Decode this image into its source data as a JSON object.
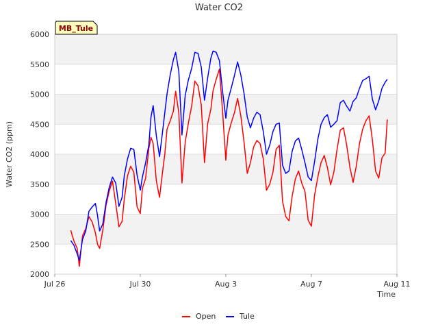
{
  "chart_data": {
    "type": "line",
    "title": "Water CO2",
    "xlabel": "Time",
    "ylabel": "Water CO2 (ppm)",
    "ylim": [
      2000,
      6000
    ],
    "yticks": [
      2000,
      2500,
      3000,
      3500,
      4000,
      4500,
      5000,
      5500,
      6000
    ],
    "xlim": [
      0,
      16
    ],
    "x_unit": "days since Jul 26",
    "xticks": [
      {
        "value": 0,
        "label": "Jul 26"
      },
      {
        "value": 4,
        "label": "Jul 30"
      },
      {
        "value": 8,
        "label": "Aug 3"
      },
      {
        "value": 12,
        "label": "Aug 7"
      },
      {
        "value": 16,
        "label": "Aug 11"
      }
    ],
    "badge": "MB_Tule",
    "legend_position": "bottom-center",
    "series": [
      {
        "name": "Open",
        "color": "#ff0000",
        "x": [
          0.75,
          0.9,
          1.05,
          1.15,
          1.3,
          1.45,
          1.6,
          1.75,
          1.9,
          2.0,
          2.1,
          2.25,
          2.4,
          2.55,
          2.7,
          2.85,
          3.0,
          3.15,
          3.25,
          3.4,
          3.55,
          3.7,
          3.85,
          4.0,
          4.1,
          4.25,
          4.4,
          4.5,
          4.6,
          4.75,
          4.9,
          5.05,
          5.15,
          5.25,
          5.4,
          5.55,
          5.65,
          5.8,
          5.95,
          6.1,
          6.25,
          6.4,
          6.55,
          6.7,
          6.85,
          7.0,
          7.15,
          7.3,
          7.4,
          7.55,
          7.7,
          7.85,
          8.0,
          8.1,
          8.25,
          8.4,
          8.55,
          8.7,
          8.85,
          9.0,
          9.15,
          9.3,
          9.45,
          9.6,
          9.75,
          9.9,
          10.05,
          10.2,
          10.35,
          10.5,
          10.65,
          10.8,
          10.95,
          11.1,
          11.25,
          11.4,
          11.55,
          11.7,
          11.85,
          12.0,
          12.15,
          12.3,
          12.45,
          12.6,
          12.75,
          12.9,
          13.05,
          13.2,
          13.35,
          13.5,
          13.65,
          13.8,
          13.95,
          14.1,
          14.25,
          14.4,
          14.55,
          14.7,
          14.85,
          15.0,
          15.15,
          15.3,
          15.45,
          15.55
        ],
        "values": [
          2730,
          2550,
          2430,
          2130,
          2640,
          2760,
          2960,
          2870,
          2690,
          2500,
          2430,
          2740,
          3150,
          3390,
          3550,
          3180,
          2790,
          2880,
          3250,
          3640,
          3800,
          3700,
          3120,
          3010,
          3430,
          3600,
          4100,
          4280,
          4180,
          3560,
          3280,
          3730,
          4010,
          4420,
          4560,
          4720,
          5050,
          4690,
          3520,
          4200,
          4520,
          4800,
          5220,
          5140,
          4820,
          3860,
          4510,
          4750,
          5060,
          5250,
          5420,
          4700,
          3900,
          4320,
          4520,
          4690,
          4930,
          4640,
          4200,
          3680,
          3860,
          4120,
          4230,
          4180,
          3920,
          3400,
          3500,
          3700,
          4080,
          4150,
          3220,
          2960,
          2890,
          3300,
          3590,
          3720,
          3520,
          3380,
          2900,
          2800,
          3320,
          3620,
          3860,
          3980,
          3780,
          3490,
          3700,
          4080,
          4400,
          4440,
          4150,
          3780,
          3530,
          3800,
          4180,
          4420,
          4560,
          4640,
          4240,
          3720,
          3600,
          3940,
          4020,
          4580
        ]
      },
      {
        "name": "Tule",
        "color": "#0000ff",
        "x": [
          0.75,
          0.9,
          1.05,
          1.15,
          1.3,
          1.45,
          1.6,
          1.75,
          1.9,
          2.0,
          2.1,
          2.25,
          2.4,
          2.55,
          2.7,
          2.85,
          3.0,
          3.15,
          3.25,
          3.4,
          3.55,
          3.7,
          3.85,
          4.0,
          4.1,
          4.25,
          4.4,
          4.5,
          4.6,
          4.75,
          4.9,
          5.05,
          5.15,
          5.25,
          5.4,
          5.55,
          5.65,
          5.8,
          5.95,
          6.1,
          6.25,
          6.4,
          6.55,
          6.7,
          6.85,
          7.0,
          7.15,
          7.3,
          7.4,
          7.55,
          7.7,
          7.85,
          8.0,
          8.1,
          8.25,
          8.4,
          8.55,
          8.7,
          8.85,
          9.0,
          9.15,
          9.3,
          9.45,
          9.6,
          9.75,
          9.9,
          10.05,
          10.2,
          10.35,
          10.5,
          10.65,
          10.8,
          10.95,
          11.1,
          11.25,
          11.4,
          11.55,
          11.7,
          11.85,
          12.0,
          12.15,
          12.3,
          12.45,
          12.6,
          12.75,
          12.9,
          13.05,
          13.2,
          13.35,
          13.5,
          13.65,
          13.8,
          13.95,
          14.1,
          14.25,
          14.4,
          14.55,
          14.7,
          14.85,
          15.0,
          15.15,
          15.3,
          15.45,
          15.55
        ],
        "values": [
          2560,
          2480,
          2340,
          2230,
          2580,
          2720,
          3050,
          3120,
          3180,
          2980,
          2720,
          2840,
          3200,
          3450,
          3620,
          3520,
          3130,
          3280,
          3640,
          3920,
          4100,
          4080,
          3650,
          3400,
          3620,
          3860,
          4160,
          4620,
          4810,
          4310,
          3960,
          4400,
          4700,
          5010,
          5330,
          5580,
          5700,
          5380,
          4320,
          4980,
          5240,
          5430,
          5700,
          5680,
          5450,
          4900,
          5270,
          5600,
          5720,
          5700,
          5560,
          5040,
          4600,
          4900,
          5100,
          5310,
          5540,
          5320,
          5010,
          4620,
          4440,
          4600,
          4700,
          4660,
          4380,
          4000,
          4150,
          4380,
          4500,
          4520,
          3820,
          3680,
          3720,
          4050,
          4220,
          4270,
          4080,
          3860,
          3620,
          3560,
          3880,
          4250,
          4500,
          4610,
          4660,
          4450,
          4500,
          4560,
          4860,
          4900,
          4800,
          4720,
          4880,
          4940,
          5100,
          5230,
          5260,
          5300,
          4920,
          4740,
          4890,
          5100,
          5200,
          5250
        ]
      }
    ]
  }
}
